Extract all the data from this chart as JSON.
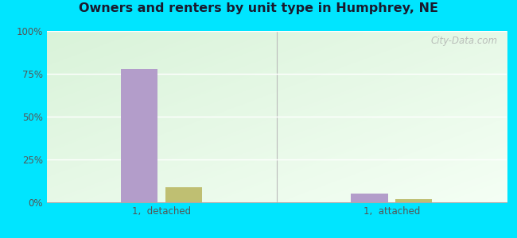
{
  "title": "Owners and renters by unit type in Humphrey, NE",
  "categories": [
    "1,  detached",
    "1,  attached"
  ],
  "owner_values": [
    78,
    5
  ],
  "renter_values": [
    9,
    2
  ],
  "owner_color": "#b39dca",
  "renter_color": "#bfbf72",
  "ylim": [
    0,
    100
  ],
  "yticks": [
    0,
    25,
    50,
    75,
    100
  ],
  "yticklabels": [
    "0%",
    "25%",
    "50%",
    "75%",
    "100%"
  ],
  "bg_color_topleft": "#d4edd4",
  "bg_color_topright": "#f0faf0",
  "bg_color_bottomleft": "#c8e8c8",
  "outer_color": "#00e5ff",
  "watermark": "City-Data.com",
  "bar_width": 0.08,
  "group_centers": [
    0.25,
    0.75
  ]
}
